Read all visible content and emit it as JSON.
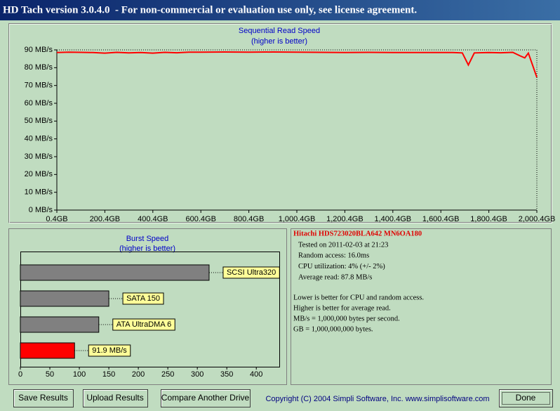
{
  "window": {
    "title": "HD Tach version 3.0.4.0  - For non-commercial or evaluation use only, see license agreement."
  },
  "chart_data": [
    {
      "type": "line",
      "title": "Sequential Read Speed",
      "subtitle": "(higher is better)",
      "x": [
        0.4,
        50,
        100,
        150,
        200,
        250,
        300,
        350,
        400,
        450,
        500,
        550,
        600,
        700,
        800,
        900,
        1000,
        1100,
        1200,
        1300,
        1400,
        1500,
        1600,
        1650,
        1690,
        1715,
        1740,
        1800,
        1850,
        1900,
        1930,
        1950,
        1965,
        2000.4
      ],
      "series": [
        {
          "color": "#ff0000",
          "values": [
            88.5,
            88.7,
            88.6,
            88.5,
            88.2,
            88.6,
            88.3,
            88.5,
            88.2,
            88.6,
            88.4,
            88.7,
            88.7,
            88.8,
            88.7,
            88.8,
            88.7,
            88.6,
            88.5,
            88.6,
            88.5,
            88.5,
            88.5,
            88.5,
            88.3,
            81.5,
            88.3,
            88.5,
            88.4,
            88.6,
            86.7,
            85.5,
            88.2,
            74.6
          ]
        }
      ],
      "xlim": [
        0.4,
        2000.4
      ],
      "xticks": [
        {
          "value": 0.4,
          "label": "0.4GB"
        },
        {
          "value": 200.4,
          "label": "200.4GB"
        },
        {
          "value": 400.4,
          "label": "400.4GB"
        },
        {
          "value": 600.4,
          "label": "600.4GB"
        },
        {
          "value": 800.4,
          "label": "800.4GB"
        },
        {
          "value": 1000.4,
          "label": "1,000.4GB"
        },
        {
          "value": 1200.4,
          "label": "1,200.4GB"
        },
        {
          "value": 1400.4,
          "label": "1,400.4GB"
        },
        {
          "value": 1600.4,
          "label": "1,600.4GB"
        },
        {
          "value": 1800.4,
          "label": "1,800.4GB"
        },
        {
          "value": 2000.4,
          "label": "2,000.4GB"
        }
      ],
      "ylim": [
        0,
        90
      ],
      "yticks": [
        {
          "value": 0,
          "label": "0 MB/s"
        },
        {
          "value": 10,
          "label": "10 MB/s"
        },
        {
          "value": 20,
          "label": "20 MB/s"
        },
        {
          "value": 30,
          "label": "30 MB/s"
        },
        {
          "value": 40,
          "label": "40 MB/s"
        },
        {
          "value": 50,
          "label": "50 MB/s"
        },
        {
          "value": 60,
          "label": "60 MB/s"
        },
        {
          "value": 70,
          "label": "70 MB/s"
        },
        {
          "value": 80,
          "label": "80 MB/s"
        },
        {
          "value": 90,
          "label": "90 MB/s"
        }
      ]
    },
    {
      "type": "bar",
      "orientation": "horizontal",
      "title": "Burst Speed",
      "subtitle": "(higher is better)",
      "categories": [
        "SCSI Ultra320",
        "SATA 150",
        "ATA UltraDMA 6",
        null
      ],
      "values": [
        320,
        150,
        133,
        91.9
      ],
      "value_labels": [
        null,
        null,
        null,
        "91.9 MB/s"
      ],
      "colors": [
        "#808080",
        "#808080",
        "#808080",
        "#ff0000"
      ],
      "xlim": [
        0,
        439
      ],
      "xticks": [
        0,
        50,
        100,
        150,
        200,
        250,
        300,
        350,
        400
      ]
    }
  ],
  "info": {
    "drive": "Hitachi HDS723020BLA642 MN6OA180",
    "details": [
      "Tested on 2011-02-03 at 21:23",
      "Random access: 16.0ms",
      "CPU utilization: 4% (+/- 2%)",
      "Average read: 87.8 MB/s"
    ],
    "notes": [
      "Lower is better for CPU and random access.",
      "Higher is better for average read.",
      "MB/s = 1,000,000 bytes per second.",
      "GB = 1,000,000,000 bytes."
    ]
  },
  "buttons": [
    "Save Results",
    "Upload Results",
    "Compare Another Drive",
    "Done"
  ],
  "footer": "Copyright (C) 2004 Simpli Software, Inc. www.simplisoftware.com"
}
